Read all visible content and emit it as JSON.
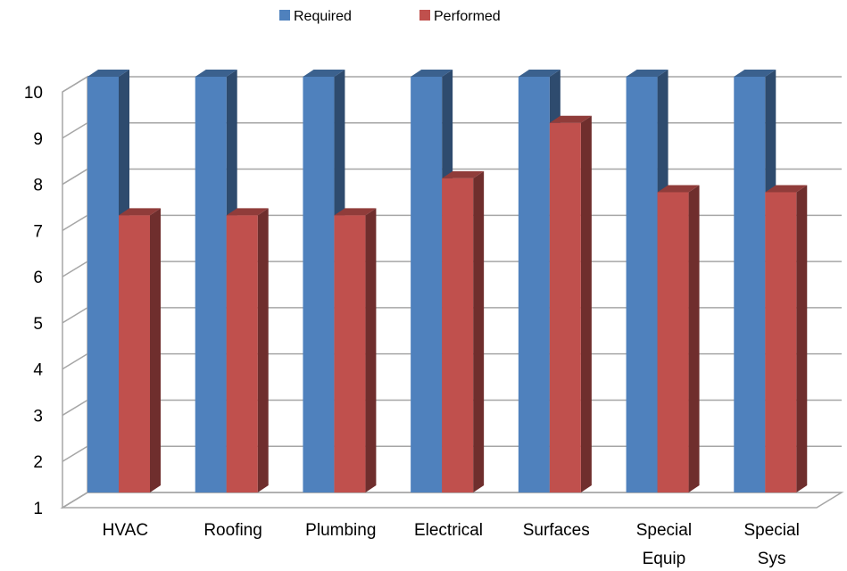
{
  "chart_data": {
    "type": "bar",
    "title": "",
    "xlabel": "",
    "ylabel": "",
    "categories": [
      [
        "HVAC"
      ],
      [
        "Roofing"
      ],
      [
        "Plumbing"
      ],
      [
        "Electrical"
      ],
      [
        "Surfaces"
      ],
      [
        "Special",
        "Equip"
      ],
      [
        "Special",
        "Sys"
      ]
    ],
    "series": [
      {
        "name": "Required",
        "color": "#4F81BD",
        "values": [
          10,
          10,
          10,
          10,
          10,
          10,
          10
        ]
      },
      {
        "name": "Performed",
        "color": "#C0504D",
        "values": [
          7,
          7,
          7,
          7.8,
          9,
          7.5,
          7.5
        ]
      }
    ],
    "yticks": [
      "1",
      "2",
      "3",
      "4",
      "5",
      "6",
      "7",
      "8",
      "9",
      "10"
    ],
    "ylim": [
      1,
      10
    ],
    "grid": true,
    "legend_position": "top"
  }
}
